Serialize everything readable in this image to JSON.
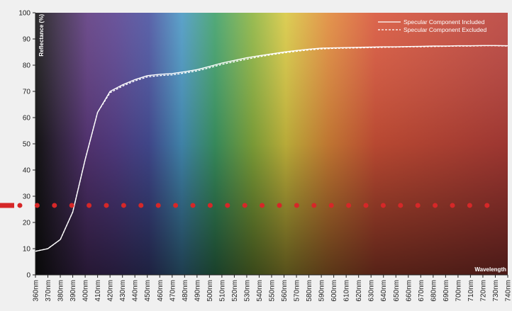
{
  "chart_data": {
    "type": "line",
    "y_label": "Reflectance (%)",
    "x_label": "Wavelength",
    "x": [
      360,
      370,
      380,
      390,
      400,
      410,
      420,
      430,
      440,
      450,
      460,
      470,
      480,
      490,
      500,
      510,
      520,
      530,
      540,
      550,
      560,
      570,
      580,
      590,
      600,
      610,
      620,
      630,
      640,
      650,
      660,
      670,
      680,
      690,
      700,
      710,
      720,
      730,
      740
    ],
    "series": [
      {
        "name": "Specular Component Included",
        "color": "#ffffff",
        "dash": false,
        "values": [
          9,
          10,
          13.5,
          24,
          44,
          62,
          70,
          72.5,
          74.5,
          76,
          76.5,
          76.8,
          77.5,
          78.3,
          79.5,
          80.8,
          81.8,
          82.8,
          83.6,
          84.3,
          85,
          85.6,
          86.1,
          86.5,
          86.6,
          86.7,
          86.8,
          86.9,
          87,
          87,
          87.1,
          87.2,
          87.3,
          87.3,
          87.4,
          87.4,
          87.5,
          87.5,
          87.4
        ]
      },
      {
        "name": "Specular Component Excluded",
        "color": "#ffffff",
        "dash": true,
        "values": [
          9,
          10,
          13.5,
          24,
          44,
          62,
          69.5,
          72,
          74,
          75.5,
          76,
          76.3,
          77,
          77.8,
          79,
          80.3,
          81.3,
          82.3,
          83.2,
          84,
          84.7,
          85.3,
          85.8,
          86.2,
          86.4,
          86.5,
          86.6,
          86.7,
          86.8,
          86.9,
          87,
          87,
          87.1,
          87.2,
          87.3,
          87.3,
          87.4,
          87.4,
          87.3
        ]
      }
    ],
    "reference_line": {
      "value": 26.5,
      "color": "#d62728"
    },
    "xlim": [
      360,
      740
    ],
    "ylim": [
      0,
      100
    ],
    "yticks": [
      0,
      10,
      20,
      30,
      40,
      50,
      60,
      70,
      80,
      90,
      100
    ],
    "xticks": [
      {
        "value": 360,
        "label": "360nm"
      },
      {
        "value": 370,
        "label": "370nm"
      },
      {
        "value": 380,
        "label": "380nm"
      },
      {
        "value": 390,
        "label": "390nm"
      },
      {
        "value": 400,
        "label": "400nm"
      },
      {
        "value": 410,
        "label": "410nm"
      },
      {
        "value": 420,
        "label": "420nm"
      },
      {
        "value": 430,
        "label": "430nm"
      },
      {
        "value": 440,
        "label": "440nm"
      },
      {
        "value": 450,
        "label": "450nm"
      },
      {
        "value": 460,
        "label": "460nm"
      },
      {
        "value": 470,
        "label": "470nm"
      },
      {
        "value": 480,
        "label": "480nm"
      },
      {
        "value": 490,
        "label": "490nm"
      },
      {
        "value": 500,
        "label": "500nm"
      },
      {
        "value": 510,
        "label": "510nm"
      },
      {
        "value": 520,
        "label": "520nm"
      },
      {
        "value": 530,
        "label": "530nm"
      },
      {
        "value": 540,
        "label": "540nm"
      },
      {
        "value": 550,
        "label": "550nm"
      },
      {
        "value": 560,
        "label": "560nm"
      },
      {
        "value": 570,
        "label": "570nm"
      },
      {
        "value": 580,
        "label": "580nm"
      },
      {
        "value": 590,
        "label": "590nm"
      },
      {
        "value": 600,
        "label": "600nm"
      },
      {
        "value": 610,
        "label": "610nm"
      },
      {
        "value": 620,
        "label": "620nm"
      },
      {
        "value": 630,
        "label": "630nm"
      },
      {
        "value": 640,
        "label": "640nm"
      },
      {
        "value": 650,
        "label": "650nm"
      },
      {
        "value": 660,
        "label": "660nm"
      },
      {
        "value": 670,
        "label": "670nm"
      },
      {
        "value": 680,
        "label": "680nm"
      },
      {
        "value": 690,
        "label": "690nm"
      },
      {
        "value": 700,
        "label": "700nm"
      },
      {
        "value": 710,
        "label": "710nm"
      },
      {
        "value": 720,
        "label": "720nm"
      },
      {
        "value": 730,
        "label": "730nm"
      },
      {
        "value": 740,
        "label": "740nm"
      }
    ],
    "legend": "top-right"
  }
}
